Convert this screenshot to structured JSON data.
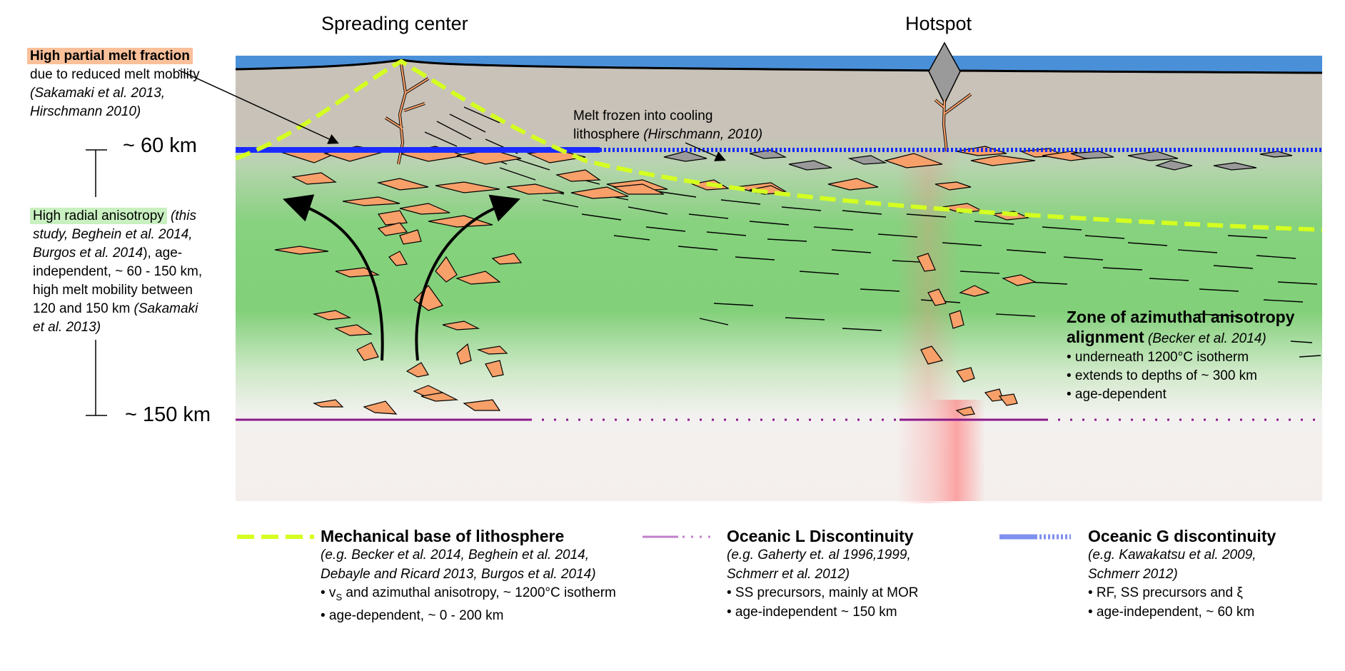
{
  "labels": {
    "spreading_center": "Spreading center",
    "hotspot": "Hotspot",
    "depth_60": "~ 60 km",
    "depth_150": "~ 150 km",
    "melt_frozen_line1": "Melt frozen into cooling",
    "melt_frozen_line2": "lithosphere ",
    "melt_frozen_ref": "(Hirschmann, 2010)"
  },
  "left_notes": {
    "melt_fraction": {
      "title": "High partial melt fraction",
      "line1": "due to reduced melt mobility",
      "line2": "(Sakamaki et al. 2013,",
      "line3": "Hirschmann 2010)"
    },
    "radial_anisotropy": {
      "title": "High radial anisotropy",
      "line1_rest": " (this",
      "line2": "study, Beghein et al. 2014,",
      "line3_ref": "Burgos et al. 2014",
      "line3_rest": "), age-",
      "line4": "independent, ~ 60 - 150 km,",
      "line5": "high  melt mobility between",
      "line6_text": "120 and 150 km ",
      "line6_ref": "(Sakamaki",
      "line7_ref": "et al. 2013)"
    }
  },
  "zone_box": {
    "title1": "Zone of azimuthal anisotropy",
    "title2": "alignment",
    "title2_ref": " (Becker et al. 2014)",
    "bullets": [
      "• underneath 1200°C isotherm",
      "• extends to depths of ~ 300 km",
      "• age-dependent"
    ]
  },
  "legend": [
    {
      "title": "Mechanical base of lithosphere",
      "refs": [
        "(e.g. Becker et al. 2014, Beghein et al. 2014,",
        "Debayle and Ricard 2013, Burgos et al. 2014)"
      ],
      "bullet1_pre": "• v",
      "bullet1_sub": "S",
      "bullet1_post": " and azimuthal anisotropy, ~ 1200°C isotherm",
      "bullet2": "• age-dependent, ~ 0 - 200 km"
    },
    {
      "title": "Oceanic L Discontinuity",
      "refs": [
        "(e.g. Gaherty et. al 1996,1999,",
        "Schmerr et al. 2012)"
      ],
      "bullet1": "• SS precursors, mainly at MOR",
      "bullet2": "• age-independent ~ 150 km"
    },
    {
      "title": "Oceanic G discontinuity",
      "refs": [
        "(e.g. Kawakatsu et al. 2009,",
        "Schmerr 2012)"
      ],
      "bullet1": "• RF, SS precursors and ξ",
      "bullet2": "• age-independent, ~ 60 km"
    }
  ],
  "colors": {
    "ocean": "#4a90d9",
    "lithosphere": "#c8c2b8",
    "asthenosphere_green": "#7fcf78",
    "melt_orange": "#f7a06a",
    "frozen_melt_grey": "#9a9a9a",
    "lab_yellow": "#d4ff20",
    "g_discontinuity": "#1a2bff",
    "l_discontinuity": "#8b1a8b",
    "plume_red": "#ff8080"
  }
}
